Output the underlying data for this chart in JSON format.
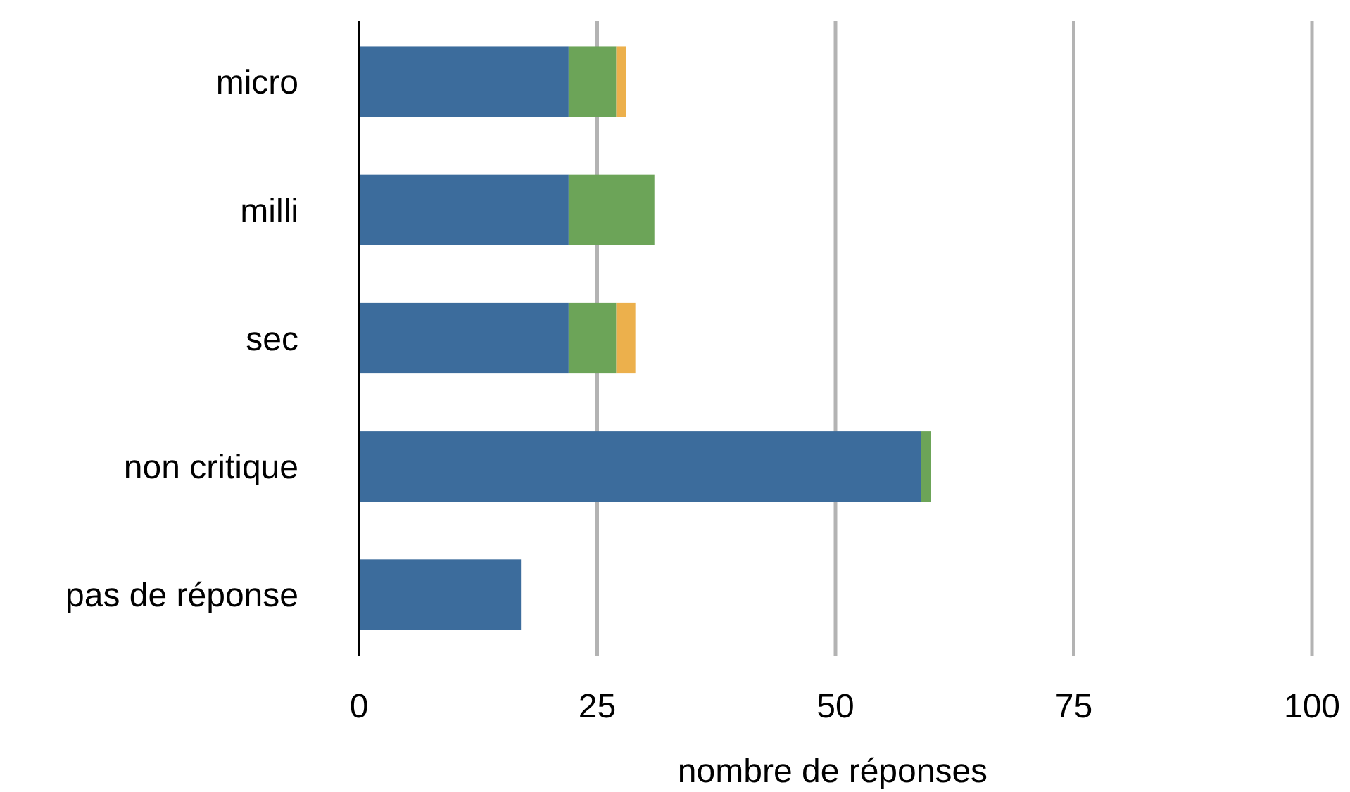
{
  "chart_data": {
    "type": "bar",
    "orientation": "horizontal",
    "stacked": true,
    "categories": [
      "micro",
      "milli",
      "sec",
      "non critique",
      "pas de réponse"
    ],
    "series": [
      {
        "color": "#3c6c9c",
        "values": [
          22,
          22,
          22,
          59,
          17
        ]
      },
      {
        "color": "#6ca458",
        "values": [
          5,
          9,
          5,
          1,
          0
        ]
      },
      {
        "color": "#ecb04c",
        "values": [
          1,
          0,
          2,
          0,
          0
        ]
      }
    ],
    "xlabel": "nombre de réponses",
    "xlim": [
      0,
      100
    ],
    "xticks": [
      0,
      25,
      50,
      75,
      100
    ],
    "grid": "x"
  }
}
